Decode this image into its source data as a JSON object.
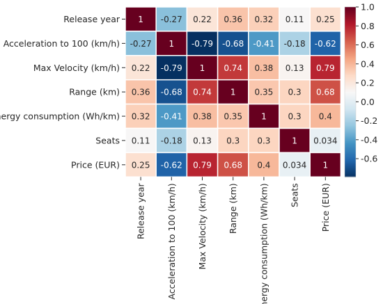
{
  "chart_data": {
    "type": "heatmap",
    "title": "",
    "xlabel": "",
    "ylabel": "",
    "row_labels": [
      "Release year",
      "Acceleration to 100 (km/h)",
      "Max Velocity (km/h)",
      "Range (km)",
      "Energy consumption (Wh/km)",
      "Seats",
      "Price (EUR)"
    ],
    "col_labels": [
      "Release year",
      "Acceleration to 100 (km/h)",
      "Max Velocity (km/h)",
      "Range (km)",
      "Energy consumption (Wh/km)",
      "Seats",
      "Price (EUR)"
    ],
    "values": [
      [
        1,
        -0.27,
        0.22,
        0.36,
        0.32,
        0.11,
        0.25
      ],
      [
        -0.27,
        1,
        -0.79,
        -0.68,
        -0.41,
        -0.18,
        -0.62
      ],
      [
        0.22,
        -0.79,
        1,
        0.74,
        0.38,
        0.13,
        0.79
      ],
      [
        0.36,
        -0.68,
        0.74,
        1,
        0.35,
        0.3,
        0.68
      ],
      [
        0.32,
        -0.41,
        0.38,
        0.35,
        1,
        0.3,
        0.4
      ],
      [
        0.11,
        -0.18,
        0.13,
        0.3,
        0.3,
        1,
        0.034
      ],
      [
        0.25,
        -0.62,
        0.79,
        0.68,
        0.4,
        0.034,
        1
      ]
    ],
    "cell_labels": [
      [
        "1",
        "-0.27",
        "0.22",
        "0.36",
        "0.32",
        "0.11",
        "0.25"
      ],
      [
        "-0.27",
        "1",
        "-0.79",
        "-0.68",
        "-0.41",
        "-0.18",
        "-0.62"
      ],
      [
        "0.22",
        "-0.79",
        "1",
        "0.74",
        "0.38",
        "0.13",
        "0.79"
      ],
      [
        "0.36",
        "-0.68",
        "0.74",
        "1",
        "0.35",
        "0.3",
        "0.68"
      ],
      [
        "0.32",
        "-0.41",
        "0.38",
        "0.35",
        "1",
        "0.3",
        "0.4"
      ],
      [
        "0.11",
        "-0.18",
        "0.13",
        "0.3",
        "0.3",
        "1",
        "0.034"
      ],
      [
        "0.25",
        "-0.62",
        "0.79",
        "0.68",
        "0.4",
        "0.034",
        "1"
      ]
    ],
    "colormap": "RdBu_r",
    "colorbar": {
      "range": [
        -0.79,
        1.0
      ],
      "ticks": [
        1.0,
        0.8,
        0.6,
        0.4,
        0.2,
        0.0,
        -0.2,
        -0.4,
        -0.6
      ],
      "tick_labels": [
        "1.0",
        "0.8",
        "0.6",
        "0.4",
        "0.2",
        "0.0",
        "-0.2",
        "-0.4",
        "-0.6"
      ]
    }
  }
}
